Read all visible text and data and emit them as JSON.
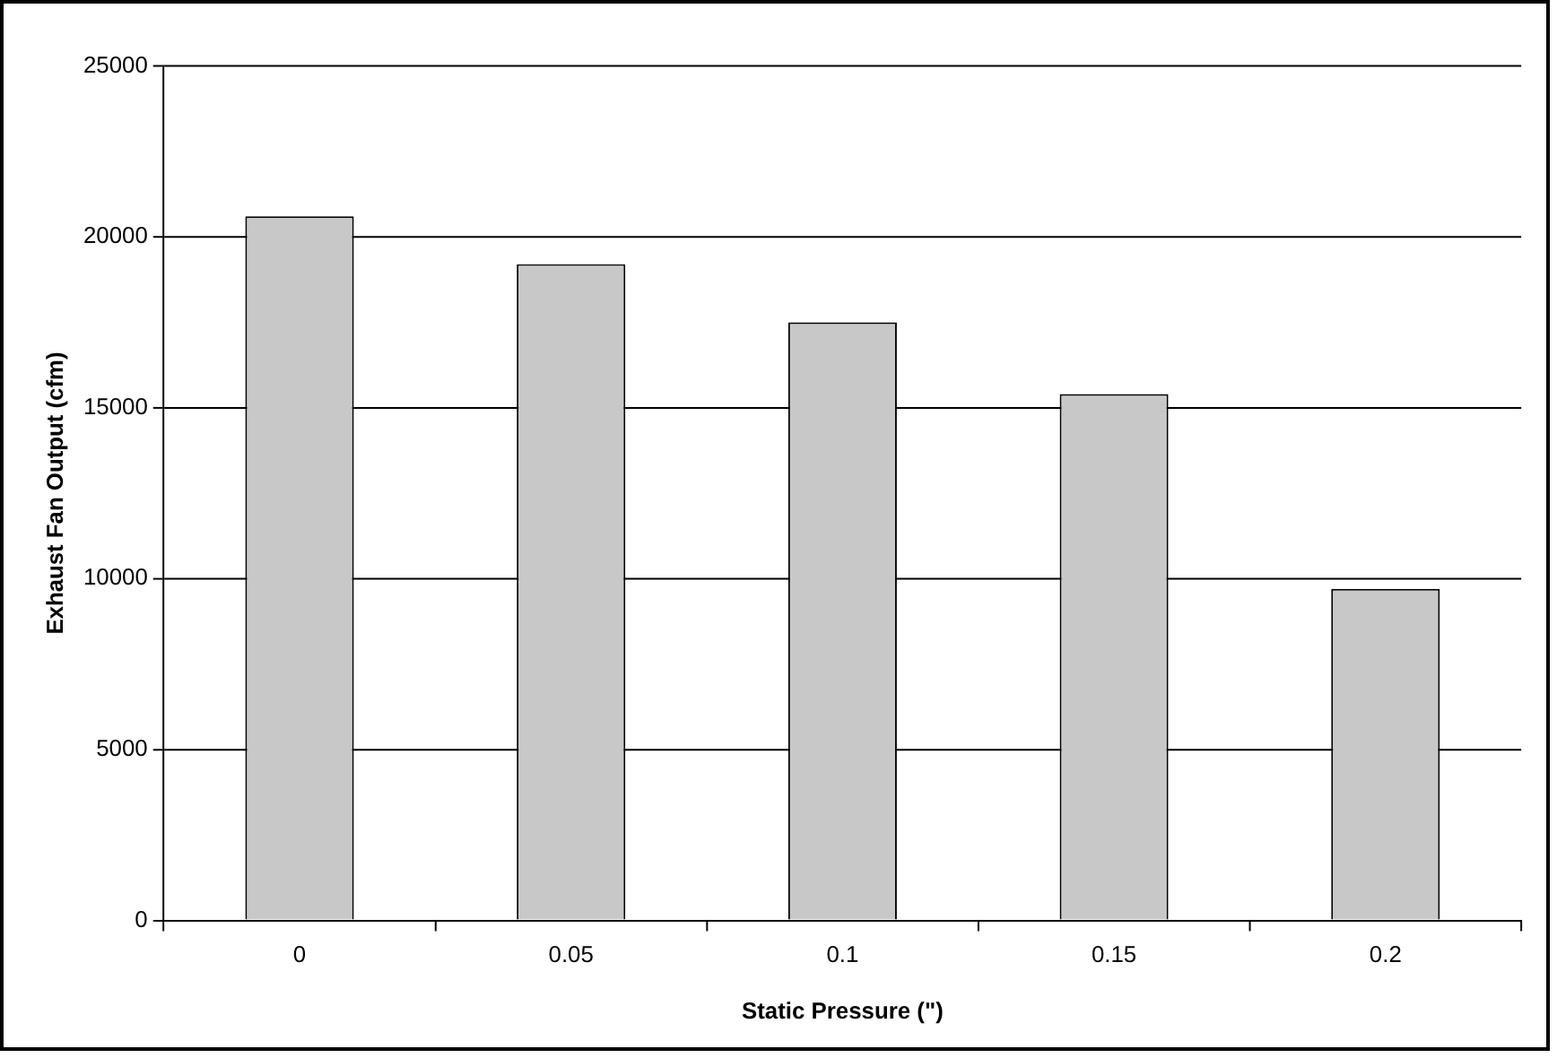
{
  "chart_data": {
    "type": "bar",
    "xlabel": "Static Pressure (\")",
    "ylabel": "Exhaust Fan Output (cfm)",
    "categories": [
      "0",
      "0.05",
      "0.1",
      "0.15",
      "0.2"
    ],
    "values": [
      20600,
      19200,
      17500,
      15400,
      9700
    ],
    "color": "#c8c8c8",
    "ylim": [
      0,
      25000
    ],
    "yticks": [
      0,
      5000,
      10000,
      15000,
      20000,
      25000
    ],
    "grid": "y",
    "legend": false
  }
}
